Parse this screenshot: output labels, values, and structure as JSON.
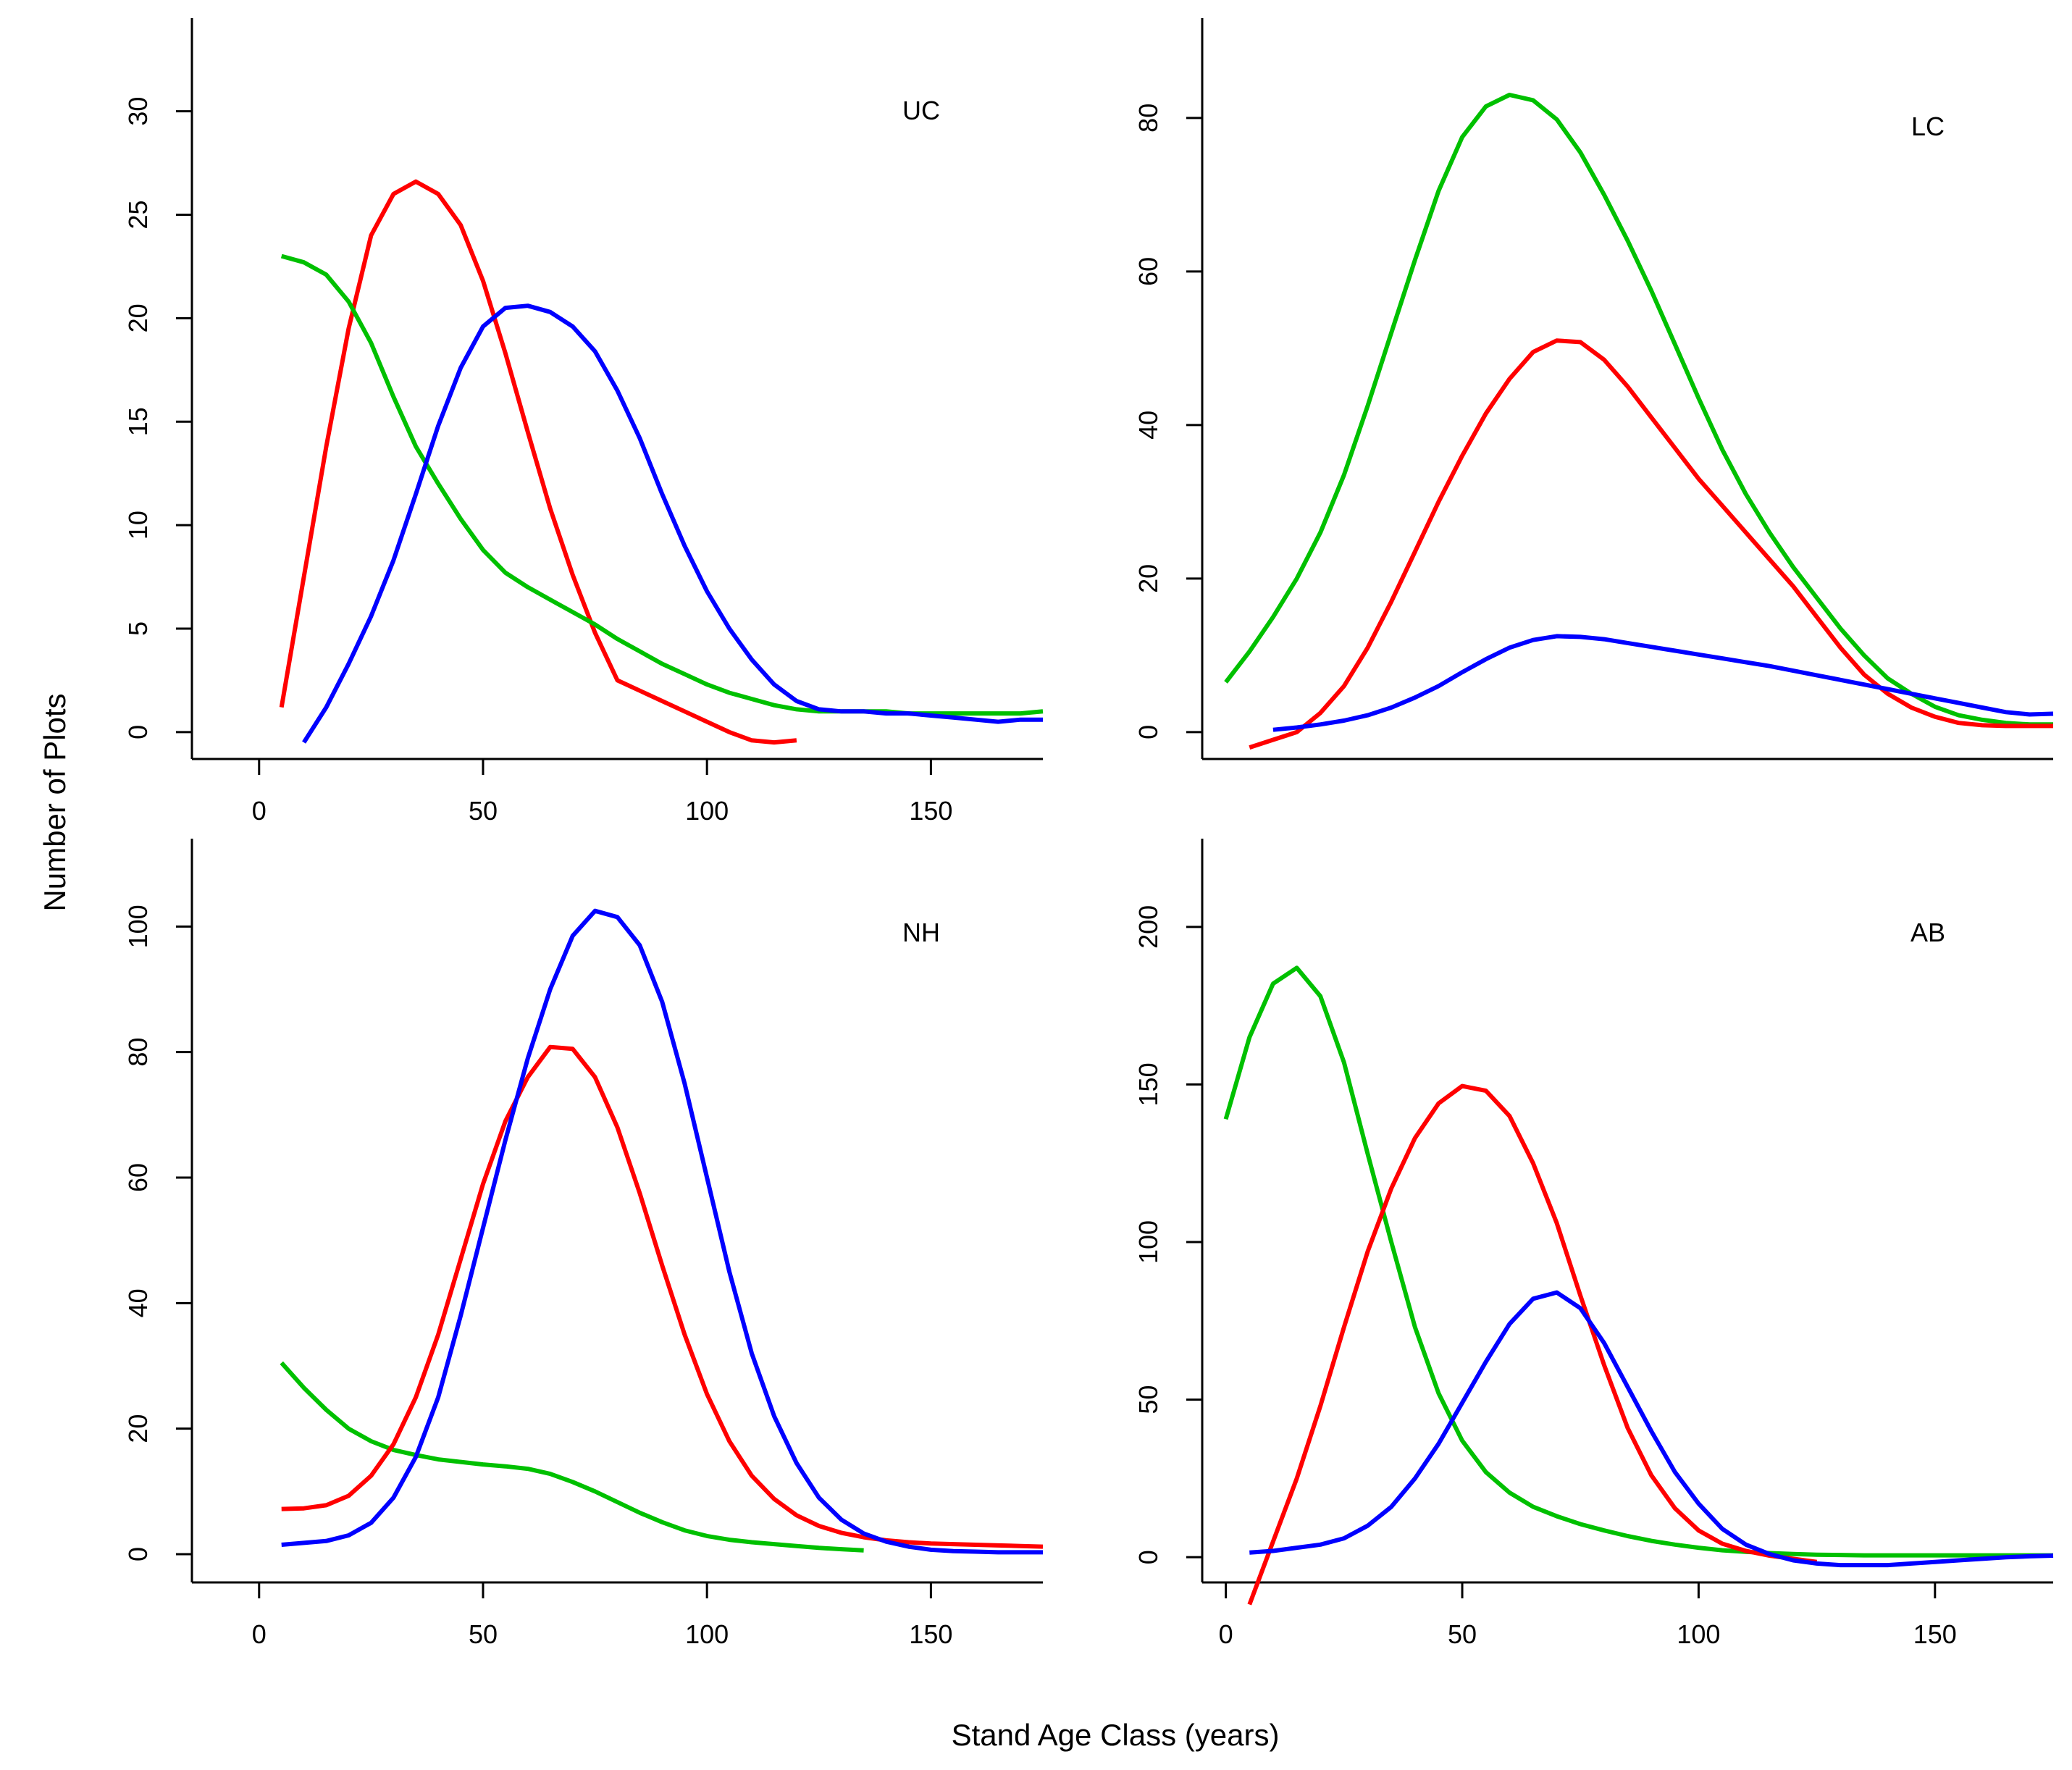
{
  "figure": {
    "xlabel": "Stand Age Class (years)",
    "ylabel": "Number of Plots"
  },
  "colors": {
    "red": "#ff0000",
    "green": "#00c000",
    "blue": "#0000ff",
    "axis": "#000000"
  },
  "chart_data": [
    {
      "type": "line",
      "panel_label": "UC",
      "xlim": [
        -15,
        175
      ],
      "ylim": [
        -1.3,
        34.5
      ],
      "xticks": [
        0,
        50,
        100,
        150
      ],
      "xtick_labels": [
        "0",
        "50",
        "100",
        "150"
      ],
      "yticks": [
        0,
        5,
        10,
        15,
        20,
        25,
        30
      ],
      "ytick_labels": [
        "0",
        "5",
        "10",
        "15",
        "20",
        "25",
        "30"
      ],
      "series": [
        {
          "name": "red",
          "color": "#ff0000",
          "x": [
            5,
            10,
            15,
            20,
            25,
            30,
            35,
            40,
            45,
            50,
            55,
            60,
            65,
            70,
            75,
            80,
            85,
            90,
            95,
            100,
            105,
            110,
            115,
            120
          ],
          "y": [
            1.2,
            7.5,
            13.8,
            19.5,
            24.0,
            26.0,
            26.6,
            26.0,
            24.5,
            21.8,
            18.3,
            14.5,
            10.8,
            7.6,
            4.8,
            2.5,
            2.0,
            1.5,
            1.0,
            0.5,
            0.0,
            -0.4,
            -0.5,
            -0.4
          ]
        },
        {
          "name": "green",
          "color": "#00c000",
          "x": [
            5,
            10,
            15,
            20,
            25,
            30,
            35,
            40,
            45,
            50,
            55,
            60,
            65,
            70,
            75,
            80,
            85,
            90,
            95,
            100,
            105,
            110,
            115,
            120,
            125,
            130,
            135,
            140,
            145,
            150,
            155,
            160,
            165,
            170,
            175
          ],
          "y": [
            23.0,
            22.7,
            22.1,
            20.8,
            18.8,
            16.2,
            13.8,
            12.0,
            10.3,
            8.8,
            7.7,
            7.0,
            6.4,
            5.8,
            5.2,
            4.5,
            3.9,
            3.3,
            2.8,
            2.3,
            1.9,
            1.6,
            1.3,
            1.1,
            1.0,
            1.0,
            1.0,
            1.0,
            0.9,
            0.9,
            0.9,
            0.9,
            0.9,
            0.9,
            1.0
          ]
        },
        {
          "name": "blue",
          "color": "#0000ff",
          "x": [
            10,
            15,
            20,
            25,
            30,
            35,
            40,
            45,
            50,
            55,
            60,
            65,
            70,
            75,
            80,
            85,
            90,
            95,
            100,
            105,
            110,
            115,
            120,
            125,
            130,
            135,
            140,
            145,
            150,
            155,
            160,
            165,
            170,
            175
          ],
          "y": [
            -0.5,
            1.2,
            3.3,
            5.6,
            8.3,
            11.5,
            14.8,
            17.6,
            19.6,
            20.5,
            20.6,
            20.3,
            19.6,
            18.4,
            16.5,
            14.2,
            11.5,
            9.0,
            6.8,
            5.0,
            3.5,
            2.3,
            1.5,
            1.1,
            1.0,
            1.0,
            0.9,
            0.9,
            0.8,
            0.7,
            0.6,
            0.5,
            0.6,
            0.6
          ]
        }
      ]
    },
    {
      "type": "line",
      "panel_label": "LC",
      "xlim": [
        -5,
        175
      ],
      "ylim": [
        -3.5,
        93
      ],
      "xticks": [],
      "xtick_labels": [],
      "yticks": [
        0,
        20,
        40,
        60,
        80
      ],
      "ytick_labels": [
        "0",
        "20",
        "40",
        "60",
        "80"
      ],
      "series": [
        {
          "name": "green",
          "color": "#00c000",
          "x": [
            0,
            5,
            10,
            15,
            20,
            25,
            30,
            35,
            40,
            45,
            50,
            55,
            60,
            65,
            70,
            75,
            80,
            85,
            90,
            95,
            100,
            105,
            110,
            115,
            120,
            125,
            130,
            135,
            140,
            145,
            150,
            155,
            160,
            165,
            170,
            175
          ],
          "y": [
            6.5,
            10.5,
            15.0,
            20.0,
            26.0,
            33.5,
            42.5,
            52.0,
            61.5,
            70.5,
            77.5,
            81.5,
            83.0,
            82.3,
            79.8,
            75.5,
            70.0,
            64.0,
            57.5,
            50.5,
            43.5,
            36.8,
            31.0,
            26.0,
            21.5,
            17.5,
            13.5,
            10.0,
            7.0,
            5.0,
            3.3,
            2.2,
            1.6,
            1.2,
            1.0,
            1.0
          ]
        },
        {
          "name": "red",
          "color": "#ff0000",
          "x": [
            5,
            10,
            15,
            20,
            25,
            30,
            35,
            40,
            45,
            50,
            55,
            60,
            65,
            70,
            75,
            80,
            85,
            90,
            95,
            100,
            105,
            110,
            115,
            120,
            125,
            130,
            135,
            140,
            145,
            150,
            155,
            160,
            165,
            170,
            175
          ],
          "y": [
            -2.0,
            -1.0,
            0.0,
            2.5,
            6.0,
            11.0,
            17.0,
            23.5,
            30.0,
            36.0,
            41.5,
            46.0,
            49.5,
            51.0,
            50.8,
            48.5,
            45.0,
            41.0,
            37.0,
            33.0,
            29.5,
            26.0,
            22.5,
            19.0,
            15.0,
            11.0,
            7.5,
            5.0,
            3.2,
            2.0,
            1.2,
            0.9,
            0.8,
            0.8,
            0.8
          ]
        },
        {
          "name": "blue",
          "color": "#0000ff",
          "x": [
            10,
            15,
            20,
            25,
            30,
            35,
            40,
            45,
            50,
            55,
            60,
            65,
            70,
            75,
            80,
            85,
            90,
            95,
            100,
            105,
            110,
            115,
            120,
            125,
            130,
            135,
            140,
            145,
            150,
            155,
            160,
            165,
            170,
            175
          ],
          "y": [
            0.3,
            0.6,
            1.0,
            1.5,
            2.2,
            3.2,
            4.5,
            6.0,
            7.8,
            9.5,
            11.0,
            12.0,
            12.5,
            12.4,
            12.1,
            11.6,
            11.1,
            10.6,
            10.1,
            9.6,
            9.1,
            8.6,
            8.0,
            7.4,
            6.8,
            6.2,
            5.6,
            5.0,
            4.4,
            3.8,
            3.2,
            2.6,
            2.3,
            2.4
          ]
        }
      ]
    },
    {
      "type": "line",
      "panel_label": "NH",
      "xlim": [
        -15,
        175
      ],
      "ylim": [
        -4.5,
        114
      ],
      "xticks": [
        0,
        50,
        100,
        150
      ],
      "xtick_labels": [
        "0",
        "50",
        "100",
        "150"
      ],
      "yticks": [
        0,
        20,
        40,
        60,
        80,
        100
      ],
      "ytick_labels": [
        "0",
        "20",
        "40",
        "60",
        "80",
        "100"
      ],
      "series": [
        {
          "name": "green",
          "color": "#00c000",
          "x": [
            5,
            10,
            15,
            20,
            25,
            30,
            35,
            40,
            45,
            50,
            55,
            60,
            65,
            70,
            75,
            80,
            85,
            90,
            95,
            100,
            105,
            110,
            115,
            120,
            125,
            130,
            135
          ],
          "y": [
            30.5,
            26.5,
            23.0,
            20.0,
            18.0,
            16.6,
            15.8,
            15.1,
            14.7,
            14.3,
            14.0,
            13.6,
            12.8,
            11.5,
            10.0,
            8.3,
            6.6,
            5.1,
            3.8,
            2.9,
            2.3,
            1.9,
            1.6,
            1.3,
            1.0,
            0.8,
            0.6
          ]
        },
        {
          "name": "red",
          "color": "#ff0000",
          "x": [
            5,
            10,
            15,
            20,
            25,
            30,
            35,
            40,
            45,
            50,
            55,
            60,
            65,
            70,
            75,
            80,
            85,
            90,
            95,
            100,
            105,
            110,
            115,
            120,
            125,
            130,
            135,
            140,
            145,
            150,
            155,
            160,
            165,
            170,
            175
          ],
          "y": [
            7.2,
            7.3,
            7.8,
            9.3,
            12.5,
            17.5,
            25.0,
            35.0,
            47.0,
            59.0,
            69.0,
            76.0,
            80.8,
            80.5,
            76.0,
            68.0,
            57.5,
            46.0,
            35.0,
            25.5,
            18.0,
            12.5,
            8.8,
            6.2,
            4.5,
            3.4,
            2.7,
            2.2,
            1.9,
            1.7,
            1.6,
            1.5,
            1.4,
            1.3,
            1.2
          ]
        },
        {
          "name": "blue",
          "color": "#0000ff",
          "x": [
            5,
            10,
            15,
            20,
            25,
            30,
            35,
            40,
            45,
            50,
            55,
            60,
            65,
            70,
            75,
            80,
            85,
            90,
            95,
            100,
            105,
            110,
            115,
            120,
            125,
            130,
            135,
            140,
            145,
            150,
            155,
            160,
            165,
            170,
            175
          ],
          "y": [
            1.5,
            1.8,
            2.1,
            3.0,
            5.0,
            9.0,
            15.5,
            25.0,
            38.0,
            52.0,
            66.0,
            79.0,
            90.0,
            98.5,
            102.5,
            101.5,
            97.0,
            88.0,
            75.0,
            60.0,
            45.0,
            32.0,
            22.0,
            14.5,
            9.0,
            5.5,
            3.3,
            2.0,
            1.2,
            0.7,
            0.5,
            0.4,
            0.3,
            0.3,
            0.3
          ]
        }
      ]
    },
    {
      "type": "line",
      "panel_label": "AB",
      "xlim": [
        -5,
        175
      ],
      "ylim": [
        -8,
        228
      ],
      "xticks": [
        0,
        50,
        100,
        150
      ],
      "xtick_labels": [
        "0",
        "50",
        "100",
        "150"
      ],
      "yticks": [
        0,
        50,
        100,
        150,
        200
      ],
      "ytick_labels": [
        "0",
        "50",
        "100",
        "150",
        "200"
      ],
      "series": [
        {
          "name": "green",
          "color": "#00c000",
          "x": [
            0,
            5,
            10,
            15,
            20,
            25,
            30,
            35,
            40,
            45,
            50,
            55,
            60,
            65,
            70,
            75,
            80,
            85,
            90,
            95,
            100,
            105,
            110,
            115,
            120,
            125,
            130,
            135,
            140,
            145,
            150,
            155,
            160,
            165,
            170,
            175
          ],
          "y": [
            139.0,
            165.0,
            182.0,
            187.0,
            178.0,
            157.0,
            128.0,
            100.0,
            73.0,
            52.0,
            37.0,
            27.0,
            20.5,
            16.0,
            13.0,
            10.5,
            8.5,
            6.7,
            5.2,
            4.0,
            3.0,
            2.2,
            1.7,
            1.3,
            1.0,
            0.8,
            0.7,
            0.6,
            0.6,
            0.6,
            0.6,
            0.6,
            0.6,
            0.6,
            0.6,
            0.6
          ]
        },
        {
          "name": "red",
          "color": "#ff0000",
          "x": [
            5,
            10,
            15,
            20,
            25,
            30,
            35,
            40,
            45,
            50,
            55,
            60,
            65,
            70,
            75,
            80,
            85,
            90,
            95,
            100,
            105,
            110,
            115,
            120,
            125
          ],
          "y": [
            -15.0,
            5.0,
            25.0,
            48.0,
            73.0,
            97.0,
            117.0,
            133.0,
            144.0,
            149.5,
            148.0,
            140.0,
            125.0,
            106.0,
            83.0,
            61.0,
            41.0,
            26.0,
            15.5,
            8.5,
            4.3,
            2.0,
            0.5,
            -0.5,
            -1.5
          ]
        },
        {
          "name": "blue",
          "color": "#0000ff",
          "x": [
            5,
            10,
            15,
            20,
            25,
            30,
            35,
            40,
            45,
            50,
            55,
            60,
            65,
            70,
            75,
            80,
            85,
            90,
            95,
            100,
            105,
            110,
            115,
            120,
            125,
            130,
            135,
            140,
            145,
            150,
            155,
            160,
            165,
            170,
            175
          ],
          "y": [
            1.5,
            2.0,
            3.0,
            4.0,
            6.0,
            10.0,
            16.0,
            25.0,
            36.0,
            49.0,
            62.0,
            74.0,
            82.0,
            84.0,
            79.0,
            68.0,
            54.0,
            40.0,
            27.0,
            17.0,
            9.0,
            4.0,
            1.0,
            -1.0,
            -2.0,
            -2.5,
            -2.5,
            -2.5,
            -2.0,
            -1.5,
            -1.0,
            -0.5,
            0.0,
            0.3,
            0.5
          ]
        }
      ]
    }
  ]
}
